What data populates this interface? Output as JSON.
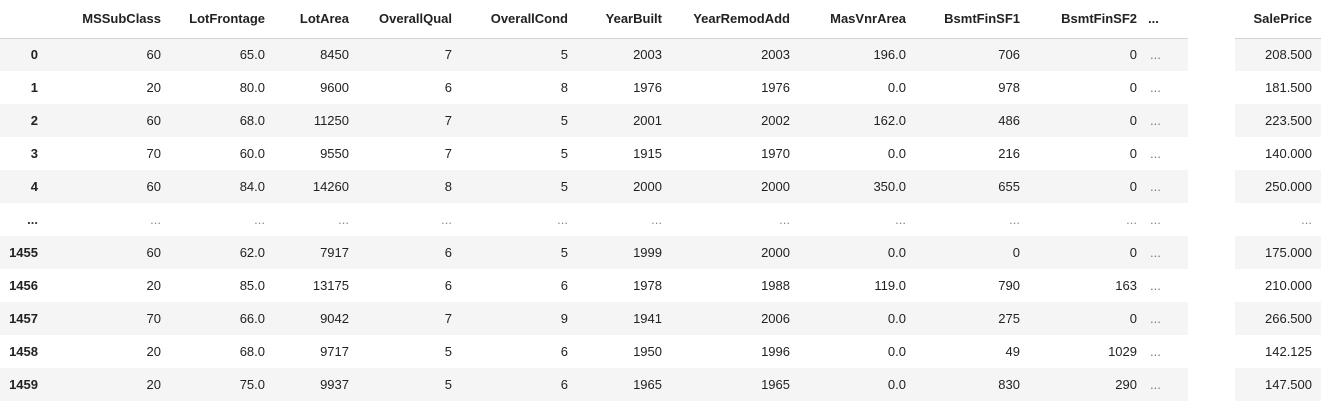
{
  "table": {
    "index_header": "",
    "columns": [
      "MSSubClass",
      "LotFrontage",
      "LotArea",
      "OverallQual",
      "OverallCond",
      "YearBuilt",
      "YearRemodAdd",
      "MasVnrArea",
      "BsmtFinSF1",
      "BsmtFinSF2"
    ],
    "ellipsis_header": "...",
    "target_column": "SalePrice",
    "rows": [
      {
        "index": "0",
        "cells": [
          "60",
          "65.0",
          "8450",
          "7",
          "5",
          "2003",
          "2003",
          "196.0",
          "706",
          "0"
        ],
        "ellipsis": "...",
        "target": "208.500"
      },
      {
        "index": "1",
        "cells": [
          "20",
          "80.0",
          "9600",
          "6",
          "8",
          "1976",
          "1976",
          "0.0",
          "978",
          "0"
        ],
        "ellipsis": "...",
        "target": "181.500"
      },
      {
        "index": "2",
        "cells": [
          "60",
          "68.0",
          "11250",
          "7",
          "5",
          "2001",
          "2002",
          "162.0",
          "486",
          "0"
        ],
        "ellipsis": "...",
        "target": "223.500"
      },
      {
        "index": "3",
        "cells": [
          "70",
          "60.0",
          "9550",
          "7",
          "5",
          "1915",
          "1970",
          "0.0",
          "216",
          "0"
        ],
        "ellipsis": "...",
        "target": "140.000"
      },
      {
        "index": "4",
        "cells": [
          "60",
          "84.0",
          "14260",
          "8",
          "5",
          "2000",
          "2000",
          "350.0",
          "655",
          "0"
        ],
        "ellipsis": "...",
        "target": "250.000"
      },
      {
        "index": "...",
        "cells": [
          "...",
          "...",
          "...",
          "...",
          "...",
          "...",
          "...",
          "...",
          "...",
          "..."
        ],
        "ellipsis": "...",
        "target": "..."
      },
      {
        "index": "1455",
        "cells": [
          "60",
          "62.0",
          "7917",
          "6",
          "5",
          "1999",
          "2000",
          "0.0",
          "0",
          "0"
        ],
        "ellipsis": "...",
        "target": "175.000"
      },
      {
        "index": "1456",
        "cells": [
          "20",
          "85.0",
          "13175",
          "6",
          "6",
          "1978",
          "1988",
          "119.0",
          "790",
          "163"
        ],
        "ellipsis": "...",
        "target": "210.000"
      },
      {
        "index": "1457",
        "cells": [
          "70",
          "66.0",
          "9042",
          "7",
          "9",
          "1941",
          "2006",
          "0.0",
          "275",
          "0"
        ],
        "ellipsis": "...",
        "target": "266.500"
      },
      {
        "index": "1458",
        "cells": [
          "20",
          "68.0",
          "9717",
          "5",
          "6",
          "1950",
          "1996",
          "0.0",
          "49",
          "1029"
        ],
        "ellipsis": "...",
        "target": "142.125"
      },
      {
        "index": "1459",
        "cells": [
          "20",
          "75.0",
          "9937",
          "5",
          "6",
          "1965",
          "1965",
          "0.0",
          "830",
          "290"
        ],
        "ellipsis": "...",
        "target": "147.500"
      }
    ]
  }
}
